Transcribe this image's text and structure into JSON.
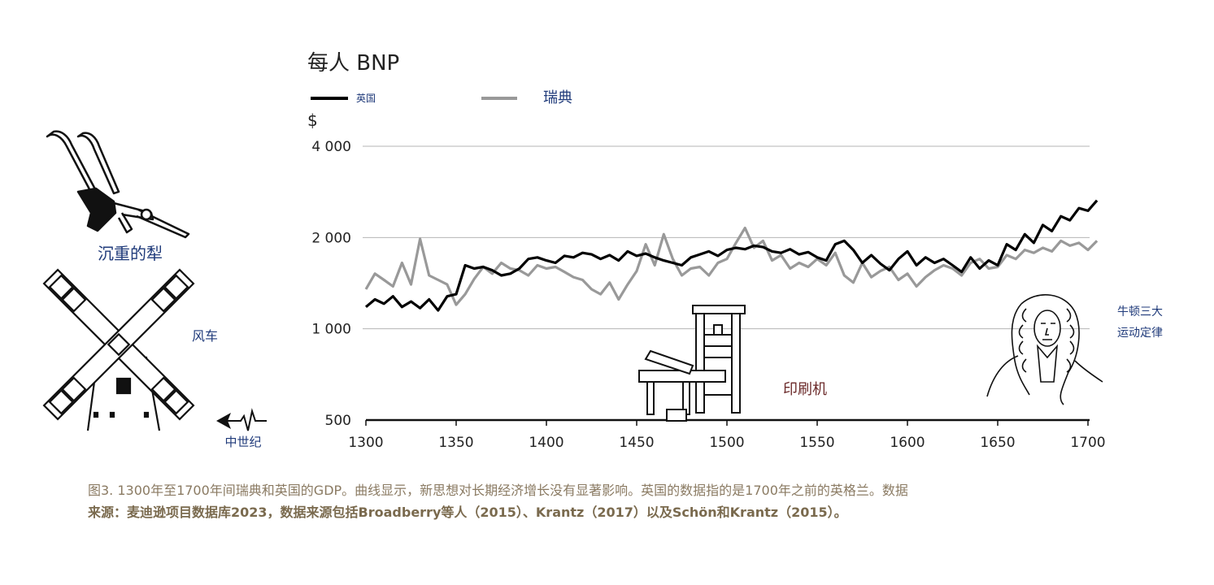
{
  "chart_data": {
    "type": "line",
    "title": "每人 BNP",
    "ylabel": "$",
    "yscale": "log",
    "ylim": [
      500,
      4000
    ],
    "xlim": [
      1300,
      1710
    ],
    "yticks": [
      500,
      1000,
      2000,
      4000
    ],
    "ytick_labels": [
      "500",
      "1 000",
      "2 000",
      "4 000"
    ],
    "xticks": [
      1300,
      1350,
      1400,
      1450,
      1500,
      1550,
      1600,
      1650,
      1700
    ],
    "xtick_labels": [
      "1300",
      "1350",
      "1400",
      "1450",
      "1500",
      "1550",
      "1600",
      "1650",
      "1700"
    ],
    "grid": true,
    "legend_position": "top-left",
    "series": [
      {
        "name": "英国",
        "color": "#000000",
        "x": [
          1300,
          1305,
          1310,
          1315,
          1320,
          1325,
          1330,
          1335,
          1340,
          1345,
          1350,
          1355,
          1360,
          1365,
          1370,
          1375,
          1380,
          1385,
          1390,
          1395,
          1400,
          1405,
          1410,
          1415,
          1420,
          1425,
          1430,
          1435,
          1440,
          1445,
          1450,
          1455,
          1460,
          1465,
          1470,
          1475,
          1480,
          1485,
          1490,
          1495,
          1500,
          1505,
          1510,
          1515,
          1520,
          1525,
          1530,
          1535,
          1540,
          1545,
          1550,
          1555,
          1560,
          1565,
          1570,
          1575,
          1580,
          1585,
          1590,
          1595,
          1600,
          1605,
          1610,
          1615,
          1620,
          1625,
          1630,
          1635,
          1640,
          1645,
          1650,
          1655,
          1660,
          1665,
          1670,
          1675,
          1680,
          1685,
          1690,
          1695,
          1700,
          1705
        ],
        "values": [
          1180,
          1250,
          1210,
          1280,
          1180,
          1230,
          1170,
          1250,
          1150,
          1280,
          1300,
          1620,
          1580,
          1600,
          1560,
          1500,
          1520,
          1580,
          1700,
          1720,
          1680,
          1650,
          1740,
          1720,
          1780,
          1760,
          1700,
          1750,
          1680,
          1800,
          1740,
          1770,
          1720,
          1680,
          1650,
          1620,
          1720,
          1760,
          1800,
          1740,
          1820,
          1850,
          1830,
          1880,
          1860,
          1800,
          1780,
          1830,
          1760,
          1790,
          1720,
          1680,
          1900,
          1950,
          1820,
          1650,
          1750,
          1640,
          1560,
          1700,
          1800,
          1620,
          1720,
          1650,
          1700,
          1620,
          1540,
          1720,
          1580,
          1680,
          1620,
          1900,
          1820,
          2050,
          1920,
          2200,
          2100,
          2350,
          2280,
          2500,
          2450,
          2650
        ]
      },
      {
        "name": "瑞典",
        "color": "#999999",
        "x": [
          1300,
          1305,
          1310,
          1315,
          1320,
          1325,
          1330,
          1335,
          1340,
          1345,
          1350,
          1355,
          1360,
          1365,
          1370,
          1375,
          1380,
          1385,
          1390,
          1395,
          1400,
          1405,
          1410,
          1415,
          1420,
          1425,
          1430,
          1435,
          1440,
          1445,
          1450,
          1455,
          1460,
          1465,
          1470,
          1475,
          1480,
          1485,
          1490,
          1495,
          1500,
          1505,
          1510,
          1515,
          1520,
          1525,
          1530,
          1535,
          1540,
          1545,
          1550,
          1555,
          1560,
          1565,
          1570,
          1575,
          1580,
          1585,
          1590,
          1595,
          1600,
          1605,
          1610,
          1615,
          1620,
          1625,
          1630,
          1635,
          1640,
          1645,
          1650,
          1655,
          1660,
          1665,
          1670,
          1675,
          1680,
          1685,
          1690,
          1695,
          1700,
          1705
        ],
        "values": [
          1350,
          1520,
          1450,
          1380,
          1650,
          1400,
          1980,
          1500,
          1450,
          1400,
          1200,
          1300,
          1460,
          1600,
          1520,
          1650,
          1580,
          1560,
          1500,
          1620,
          1580,
          1600,
          1540,
          1480,
          1450,
          1350,
          1300,
          1420,
          1250,
          1400,
          1550,
          1900,
          1620,
          2050,
          1700,
          1500,
          1580,
          1600,
          1500,
          1650,
          1700,
          1920,
          2150,
          1850,
          1950,
          1680,
          1750,
          1580,
          1650,
          1600,
          1700,
          1620,
          1780,
          1500,
          1420,
          1650,
          1480,
          1550,
          1600,
          1450,
          1520,
          1380,
          1480,
          1560,
          1620,
          1580,
          1500,
          1650,
          1700,
          1580,
          1600,
          1750,
          1700,
          1820,
          1780,
          1850,
          1800,
          1950,
          1880,
          1920,
          1820,
          1950
        ]
      }
    ]
  },
  "annotations": {
    "plough": "沉重的犁",
    "windmill": "风车",
    "medieval": "中世纪",
    "press": "印刷机",
    "newton_line1": "牛顿三大",
    "newton_line2": "运动定律"
  },
  "caption": {
    "line1": "图3. 1300年至1700年间瑞典和英国的GDP。曲线显示，新思想对长期经济增长没有显著影响。英国的数据指的是1700年之前的英格兰。数据",
    "line2": "来源：麦迪逊项目数据库2023，数据来源包括Broadberry等人（2015）、Krantz（2017）以及Schön和Krantz（2015）。"
  },
  "colors": {
    "annotation_blue": "#1f3a7a",
    "press_label": "#6b2a2a",
    "caption": "#7a6a4e"
  }
}
